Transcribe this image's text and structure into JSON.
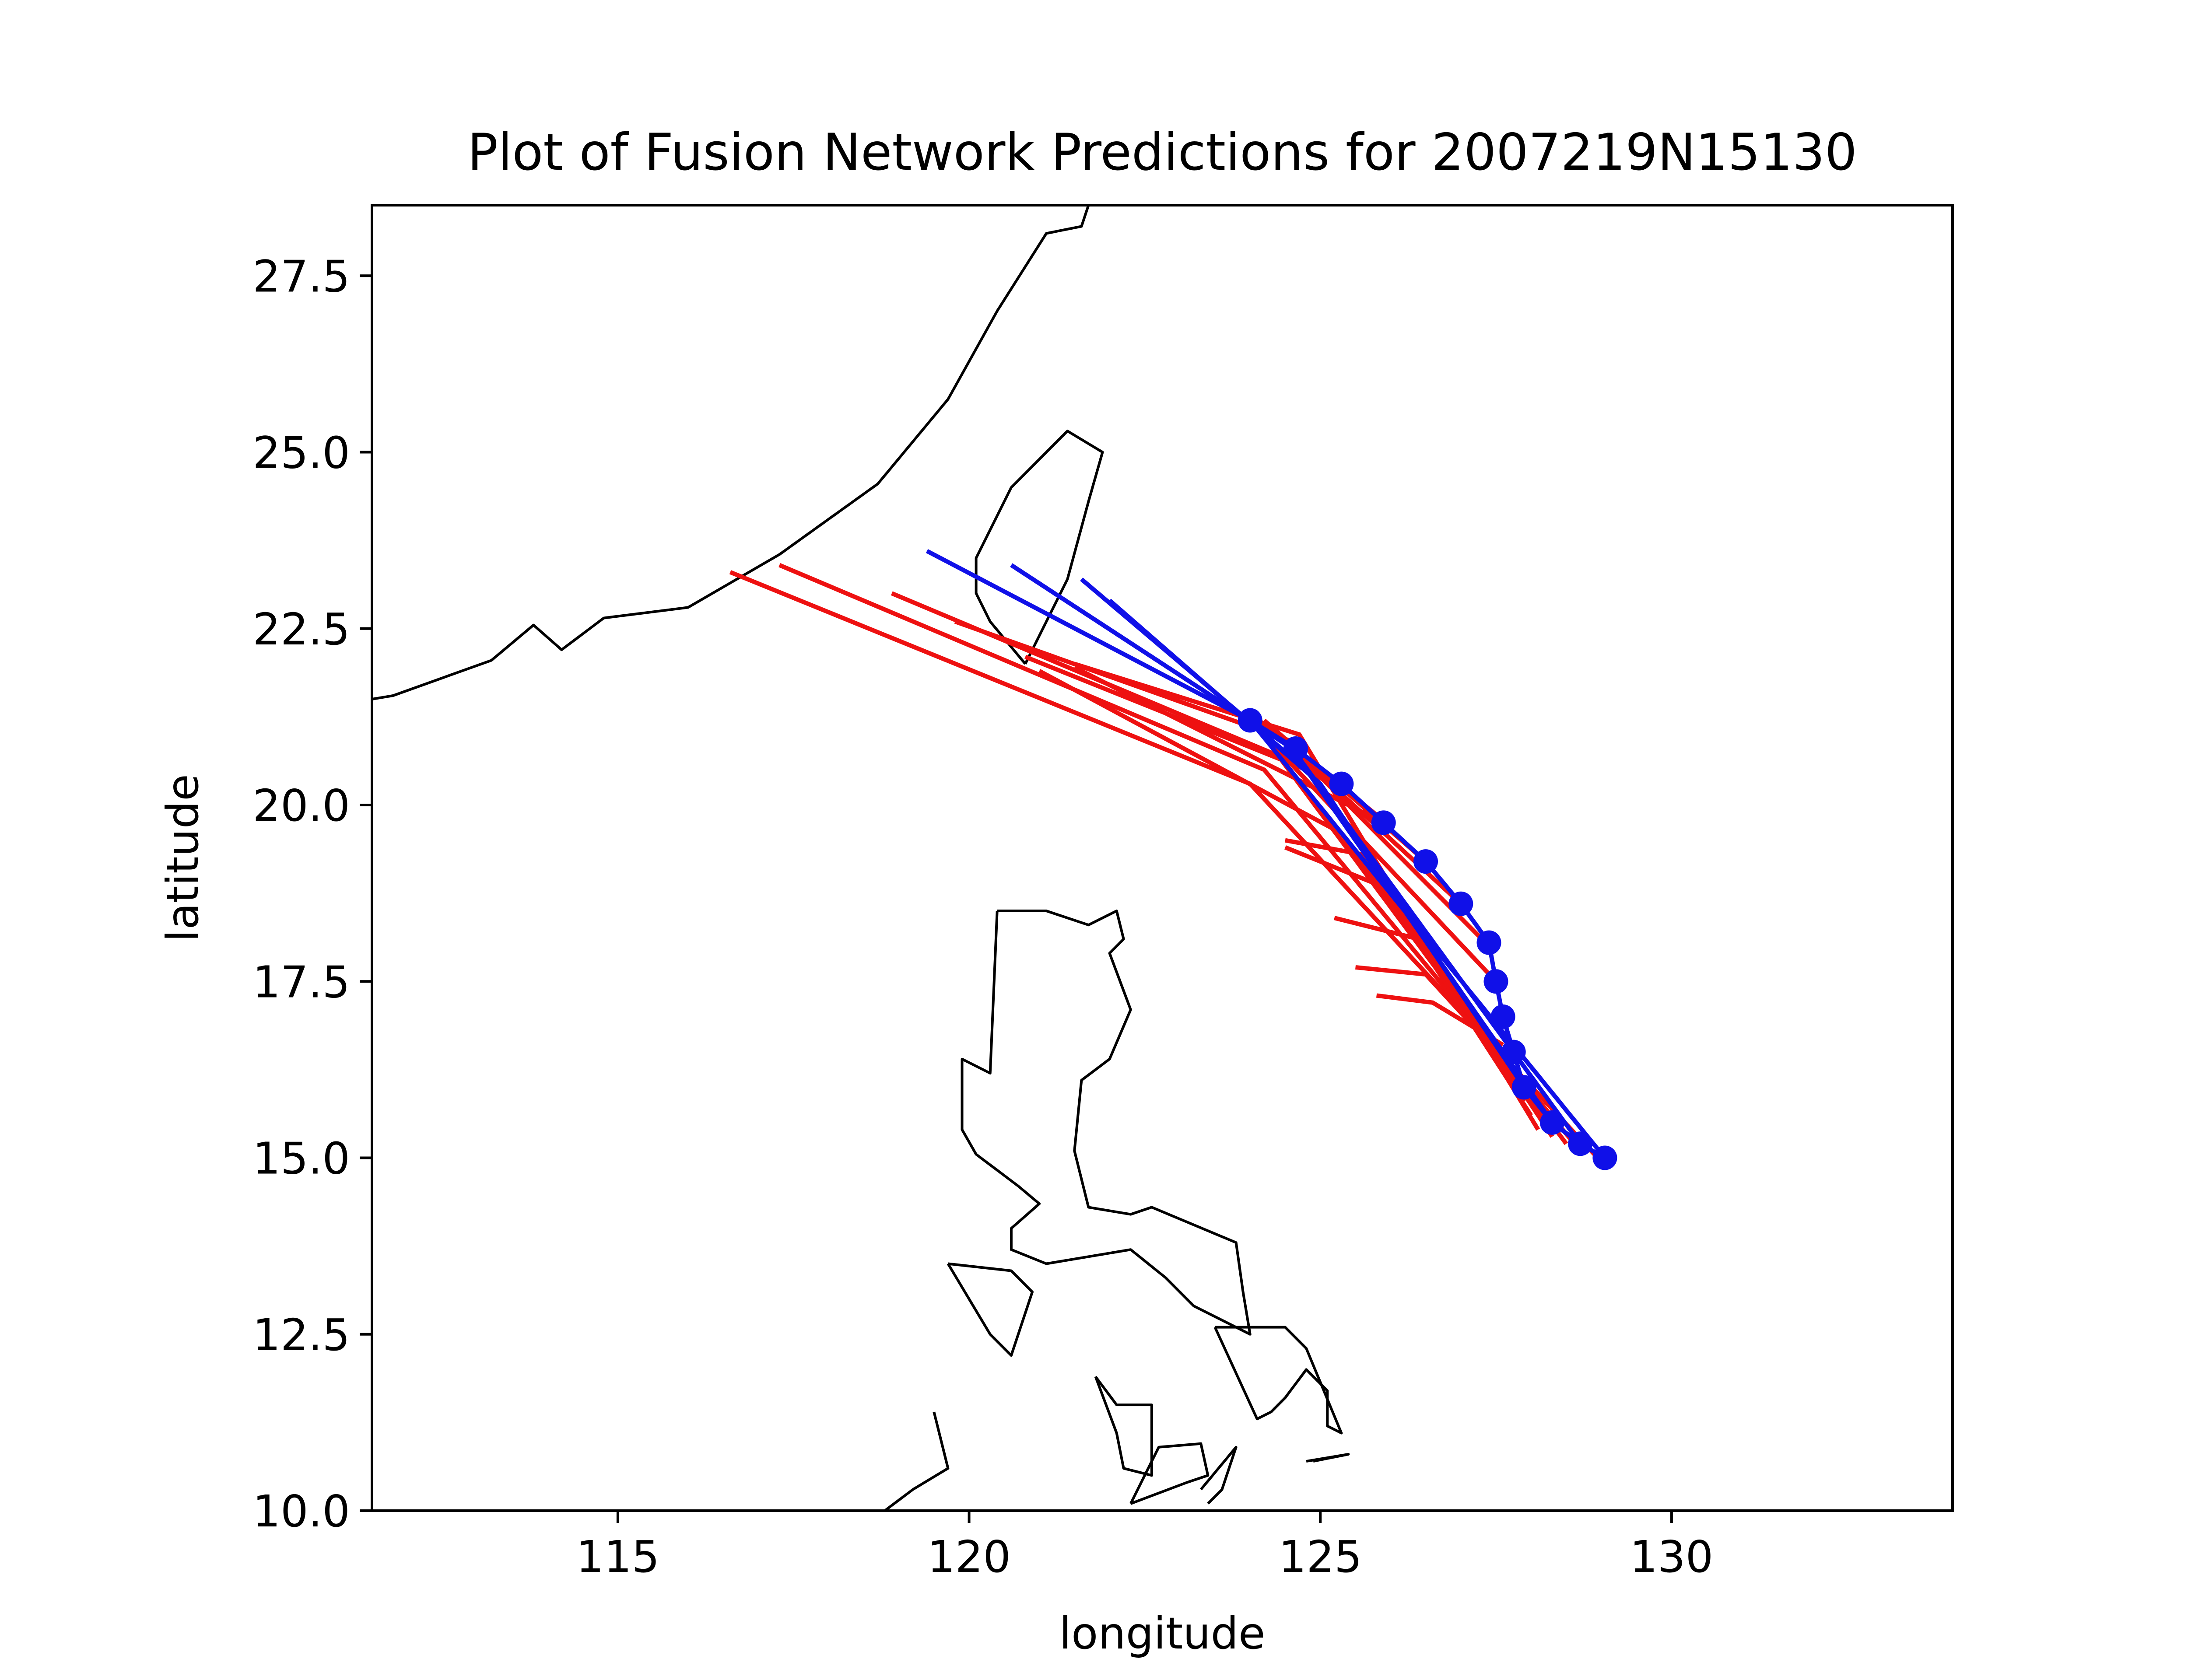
{
  "chart_data": {
    "type": "line",
    "title": "Plot of Fusion Network Predictions for 2007219N15130",
    "xlabel": "longitude",
    "ylabel": "latitude",
    "xlim": [
      111.5,
      134.0
    ],
    "ylim": [
      10.0,
      28.5
    ],
    "xticks": [
      {
        "value": 115,
        "label": "115"
      },
      {
        "value": 120,
        "label": "120"
      },
      {
        "value": 125,
        "label": "125"
      },
      {
        "value": 130,
        "label": "130"
      }
    ],
    "yticks": [
      {
        "value": 10.0,
        "label": "10.0"
      },
      {
        "value": 12.5,
        "label": "12.5"
      },
      {
        "value": 15.0,
        "label": "15.0"
      },
      {
        "value": 17.5,
        "label": "17.5"
      },
      {
        "value": 20.0,
        "label": "20.0"
      },
      {
        "value": 22.5,
        "label": "22.5"
      },
      {
        "value": 25.0,
        "label": "25.0"
      },
      {
        "value": 27.5,
        "label": "27.5"
      }
    ],
    "grid": false,
    "legend": "none",
    "colors": {
      "observed": "#1010e8",
      "predicted": "#ee1111",
      "coastline": "#000000"
    },
    "observed_track": [
      [
        129.05,
        15.0
      ],
      [
        128.7,
        15.2
      ],
      [
        128.3,
        15.5
      ],
      [
        127.9,
        16.0
      ],
      [
        127.75,
        16.5
      ],
      [
        127.6,
        17.0
      ],
      [
        127.5,
        17.5
      ],
      [
        127.4,
        18.05
      ],
      [
        127.0,
        18.6
      ],
      [
        126.5,
        19.2
      ],
      [
        125.9,
        19.75
      ],
      [
        125.3,
        20.3
      ],
      [
        124.65,
        20.8
      ],
      [
        124.0,
        21.2
      ]
    ],
    "observed_forecast_lines": [
      [
        [
          129.05,
          15.0
        ],
        [
          124.0,
          21.2
        ],
        [
          119.4,
          23.6
        ]
      ],
      [
        [
          128.7,
          15.2
        ],
        [
          124.6,
          20.8
        ],
        [
          120.6,
          23.4
        ]
      ],
      [
        [
          128.3,
          15.5
        ],
        [
          124.8,
          20.5
        ],
        [
          121.6,
          23.2
        ]
      ],
      [
        [
          127.9,
          16.0
        ],
        [
          125.0,
          20.3
        ],
        [
          122.0,
          22.9
        ]
      ]
    ],
    "predicted_lines": [
      [
        [
          128.9,
          15.05
        ],
        [
          124.0,
          20.3
        ],
        [
          116.6,
          23.3
        ]
      ],
      [
        [
          128.7,
          15.1
        ],
        [
          124.2,
          20.5
        ],
        [
          117.3,
          23.4
        ]
      ],
      [
        [
          128.5,
          15.2
        ],
        [
          124.4,
          20.7
        ],
        [
          118.9,
          23.0
        ]
      ],
      [
        [
          128.3,
          15.3
        ],
        [
          124.6,
          20.9
        ],
        [
          119.8,
          22.6
        ]
      ],
      [
        [
          128.1,
          15.4
        ],
        [
          124.7,
          21.0
        ],
        [
          121.5,
          22.0
        ]
      ],
      [
        [
          128.2,
          15.5
        ],
        [
          125.3,
          19.6
        ],
        [
          121.0,
          21.9
        ]
      ],
      [
        [
          128.0,
          15.6
        ],
        [
          125.6,
          19.3
        ],
        [
          124.5,
          19.5
        ]
      ],
      [
        [
          127.9,
          15.8
        ],
        [
          126.0,
          18.8
        ],
        [
          124.5,
          19.4
        ]
      ],
      [
        [
          127.8,
          16.1
        ],
        [
          126.4,
          18.1
        ],
        [
          125.2,
          18.4
        ]
      ],
      [
        [
          127.7,
          16.3
        ],
        [
          126.5,
          17.6
        ],
        [
          125.5,
          17.7
        ]
      ],
      [
        [
          127.6,
          16.6
        ],
        [
          126.6,
          17.2
        ],
        [
          125.8,
          17.3
        ]
      ],
      [
        [
          127.5,
          17.5
        ],
        [
          124.0,
          21.2
        ]
      ],
      [
        [
          127.4,
          18.0
        ],
        [
          124.7,
          20.7
        ]
      ],
      [
        [
          127.0,
          18.6
        ],
        [
          124.6,
          20.8
        ]
      ],
      [
        [
          126.5,
          19.2
        ],
        [
          124.2,
          21.2
        ]
      ],
      [
        [
          126.0,
          19.7
        ],
        [
          124.0,
          21.3
        ]
      ],
      [
        [
          125.9,
          19.75
        ],
        [
          121.5,
          21.95
        ]
      ],
      [
        [
          125.3,
          20.3
        ],
        [
          120.8,
          22.1
        ]
      ]
    ],
    "coastlines": [
      [
        [
          111.5,
          21.5
        ],
        [
          111.8,
          21.55
        ],
        [
          113.2,
          22.05
        ],
        [
          113.8,
          22.55
        ],
        [
          114.2,
          22.2
        ],
        [
          114.8,
          22.65
        ],
        [
          116.0,
          22.8
        ],
        [
          117.3,
          23.55
        ],
        [
          118.7,
          24.55
        ],
        [
          119.7,
          25.75
        ],
        [
          120.4,
          27.0
        ],
        [
          121.1,
          28.1
        ],
        [
          121.6,
          28.2
        ],
        [
          121.7,
          28.5
        ]
      ],
      [
        [
          120.8,
          22.0
        ],
        [
          120.3,
          22.6
        ],
        [
          120.1,
          23.0
        ],
        [
          120.1,
          23.5
        ],
        [
          120.6,
          24.5
        ],
        [
          121.4,
          25.3
        ],
        [
          121.9,
          25.0
        ],
        [
          121.7,
          24.3
        ],
        [
          121.4,
          23.2
        ],
        [
          121.1,
          22.6
        ],
        [
          120.8,
          22.0
        ]
      ],
      [
        [
          120.4,
          18.5
        ],
        [
          121.1,
          18.5
        ],
        [
          121.7,
          18.3
        ],
        [
          122.1,
          18.5
        ],
        [
          122.2,
          18.1
        ],
        [
          122.0,
          17.9
        ],
        [
          122.3,
          17.1
        ],
        [
          122.0,
          16.4
        ],
        [
          121.6,
          16.1
        ],
        [
          121.5,
          15.1
        ],
        [
          121.7,
          14.3
        ],
        [
          122.3,
          14.2
        ],
        [
          122.6,
          14.3
        ],
        [
          123.8,
          13.8
        ],
        [
          123.9,
          13.1
        ],
        [
          124.0,
          12.5
        ],
        [
          123.2,
          12.9
        ],
        [
          122.8,
          13.3
        ],
        [
          122.3,
          13.7
        ],
        [
          121.1,
          13.5
        ],
        [
          120.6,
          13.7
        ],
        [
          120.6,
          14.0
        ],
        [
          121.0,
          14.35
        ],
        [
          120.7,
          14.6
        ],
        [
          120.1,
          15.05
        ],
        [
          119.9,
          15.4
        ],
        [
          119.9,
          16.4
        ],
        [
          120.3,
          16.2
        ],
        [
          120.4,
          18.5
        ]
      ],
      [
        [
          119.7,
          13.5
        ],
        [
          120.6,
          13.4
        ],
        [
          120.9,
          13.1
        ],
        [
          120.6,
          12.2
        ],
        [
          120.3,
          12.5
        ],
        [
          119.7,
          13.5
        ]
      ],
      [
        [
          123.5,
          12.6
        ],
        [
          124.5,
          12.6
        ],
        [
          124.8,
          12.3
        ],
        [
          125.3,
          11.1
        ],
        [
          125.1,
          11.2
        ],
        [
          125.1,
          11.7
        ],
        [
          124.8,
          12.0
        ],
        [
          124.5,
          11.6
        ],
        [
          124.3,
          11.4
        ],
        [
          124.1,
          11.3
        ],
        [
          123.5,
          12.6
        ]
      ],
      [
        [
          121.8,
          11.9
        ],
        [
          122.1,
          11.5
        ],
        [
          122.6,
          11.5
        ],
        [
          122.6,
          11.1
        ],
        [
          122.6,
          10.5
        ],
        [
          122.2,
          10.6
        ],
        [
          122.1,
          11.1
        ],
        [
          121.8,
          11.9
        ]
      ],
      [
        [
          122.3,
          10.1
        ],
        [
          122.7,
          10.9
        ],
        [
          123.3,
          10.95
        ],
        [
          123.4,
          10.5
        ],
        [
          123.1,
          10.4
        ],
        [
          122.3,
          10.1
        ]
      ],
      [
        [
          123.3,
          10.3
        ],
        [
          123.8,
          10.9
        ],
        [
          123.6,
          10.3
        ],
        [
          123.4,
          10.1
        ]
      ],
      [
        [
          124.9,
          10.7
        ],
        [
          125.4,
          10.8
        ],
        [
          124.8,
          10.7
        ]
      ],
      [
        [
          119.5,
          11.4
        ],
        [
          119.7,
          10.6
        ],
        [
          119.2,
          10.3
        ],
        [
          118.8,
          10.0
        ]
      ]
    ]
  }
}
